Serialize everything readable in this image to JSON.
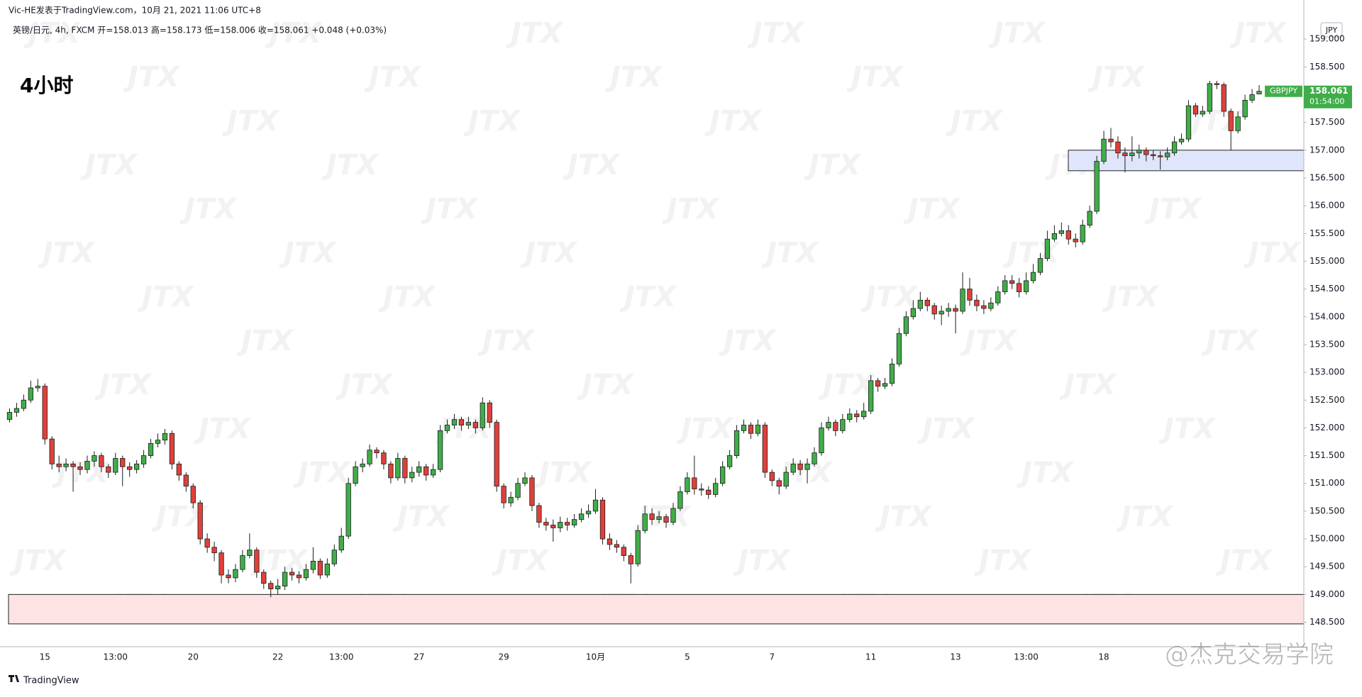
{
  "chart_data": {
    "type": "candlestick",
    "publisher": "Vic-HE发表于TradingView.com，10月 21, 2021 11:06 UTC+8",
    "legend_text": "英镑/日元, 4h, FXCM  开=158.013  高=158.173  低=158.006  收=158.061  +0.048 (+0.03%)",
    "title": "4小时",
    "currency": "JPY",
    "symbol": "GBPJPY",
    "last_price": 158.061,
    "countdown": "01:54:00",
    "brand": "TradingView",
    "watermark": "JTX",
    "overlay_text": "@杰克交易学院",
    "colors": {
      "up": "#3fae49",
      "down": "#e0403a",
      "last": "#3fae49"
    },
    "ylim": [
      148.06,
      159.36
    ],
    "yticks": [
      {
        "value": 148.5,
        "label": "148.500"
      },
      {
        "value": 149,
        "label": "149.000"
      },
      {
        "value": 149.5,
        "label": "149.500"
      },
      {
        "value": 150,
        "label": "150.000"
      },
      {
        "value": 150.5,
        "label": "150.500"
      },
      {
        "value": 151,
        "label": "151.000"
      },
      {
        "value": 151.5,
        "label": "151.500"
      },
      {
        "value": 152,
        "label": "152.000"
      },
      {
        "value": 152.5,
        "label": "152.500"
      },
      {
        "value": 153,
        "label": "153.000"
      },
      {
        "value": 153.5,
        "label": "153.500"
      },
      {
        "value": 154,
        "label": "154.000"
      },
      {
        "value": 154.5,
        "label": "154.500"
      },
      {
        "value": 155,
        "label": "155.000"
      },
      {
        "value": 155.5,
        "label": "155.500"
      },
      {
        "value": 156,
        "label": "156.000"
      },
      {
        "value": 156.5,
        "label": "156.500"
      },
      {
        "value": 157,
        "label": "157.000"
      },
      {
        "value": 157.5,
        "label": "157.500"
      },
      {
        "value": 158,
        "label": "158.000"
      },
      {
        "value": 158.5,
        "label": "158.500"
      },
      {
        "value": 159,
        "label": "159.000"
      }
    ],
    "zones": [
      {
        "from": 149.0,
        "to": 148.47,
        "color": "#fde3e3"
      },
      {
        "from": 157.0,
        "to": 156.63,
        "color": "#dfe6fb"
      }
    ],
    "categories": [
      null,
      null,
      null,
      null,
      null,
      "15",
      null,
      null,
      null,
      null,
      null,
      null,
      null,
      null,
      null,
      "13:00",
      null,
      null,
      null,
      null,
      null,
      null,
      null,
      null,
      null,
      null,
      "20",
      null,
      null,
      null,
      null,
      null,
      null,
      null,
      null,
      null,
      null,
      null,
      "22",
      null,
      null,
      null,
      null,
      null,
      null,
      null,
      null,
      "13:00",
      null,
      null,
      null,
      null,
      null,
      null,
      null,
      null,
      null,
      null,
      "27",
      null,
      null,
      null,
      null,
      null,
      null,
      null,
      null,
      null,
      null,
      null,
      "29",
      null,
      null,
      null,
      null,
      null,
      null,
      null,
      null,
      null,
      null,
      null,
      null,
      "10月",
      null,
      null,
      null,
      null,
      null,
      null,
      null,
      null,
      null,
      null,
      null,
      null,
      "5",
      null,
      null,
      null,
      null,
      null,
      null,
      null,
      null,
      null,
      null,
      null,
      "7",
      null,
      null,
      null,
      null,
      null,
      null,
      null,
      null,
      null,
      null,
      null,
      null,
      null,
      "11",
      null,
      null,
      null,
      null,
      null,
      null,
      null,
      null,
      null,
      null,
      null,
      "13",
      null,
      null,
      null,
      null,
      null,
      null,
      null,
      null,
      null,
      "13:00",
      null,
      null,
      null,
      null,
      null,
      null,
      null,
      null,
      null,
      null,
      "18",
      null,
      null,
      null,
      null,
      null,
      null,
      null,
      null,
      null,
      null,
      null,
      null,
      null,
      null,
      null,
      null,
      null,
      null,
      null,
      null,
      null,
      null
    ],
    "ohlc": [
      [
        152.15,
        152.35,
        152.1,
        152.28
      ],
      [
        152.28,
        152.45,
        152.2,
        152.35
      ],
      [
        152.35,
        152.6,
        152.3,
        152.5
      ],
      [
        152.5,
        152.85,
        152.45,
        152.72
      ],
      [
        152.72,
        152.88,
        152.65,
        152.75
      ],
      [
        152.75,
        152.8,
        151.7,
        151.8
      ],
      [
        151.8,
        151.85,
        151.25,
        151.35
      ],
      [
        151.35,
        151.5,
        151.2,
        151.3
      ],
      [
        151.3,
        151.45,
        151.22,
        151.35
      ],
      [
        151.35,
        151.4,
        150.85,
        151.3
      ],
      [
        151.3,
        151.38,
        151.15,
        151.25
      ],
      [
        151.25,
        151.5,
        151.18,
        151.4
      ],
      [
        151.4,
        151.58,
        151.3,
        151.5
      ],
      [
        151.5,
        151.55,
        151.2,
        151.3
      ],
      [
        151.3,
        151.35,
        151.1,
        151.2
      ],
      [
        151.2,
        151.55,
        151.15,
        151.45
      ],
      [
        151.45,
        151.5,
        150.95,
        151.3
      ],
      [
        151.3,
        151.38,
        151.12,
        151.25
      ],
      [
        151.25,
        151.42,
        151.18,
        151.35
      ],
      [
        151.35,
        151.6,
        151.28,
        151.5
      ],
      [
        151.5,
        151.8,
        151.45,
        151.72
      ],
      [
        151.72,
        151.9,
        151.65,
        151.78
      ],
      [
        151.78,
        151.98,
        151.7,
        151.9
      ],
      [
        151.9,
        151.95,
        151.25,
        151.35
      ],
      [
        151.35,
        151.4,
        151.05,
        151.15
      ],
      [
        151.15,
        151.2,
        150.85,
        150.95
      ],
      [
        150.95,
        151.0,
        150.55,
        150.65
      ],
      [
        150.65,
        150.7,
        149.9,
        150.0
      ],
      [
        150.0,
        150.1,
        149.75,
        149.85
      ],
      [
        149.85,
        149.95,
        149.6,
        149.75
      ],
      [
        149.75,
        149.8,
        149.2,
        149.35
      ],
      [
        149.35,
        149.45,
        149.2,
        149.3
      ],
      [
        149.3,
        149.55,
        149.22,
        149.45
      ],
      [
        149.45,
        149.8,
        149.4,
        149.7
      ],
      [
        149.7,
        150.1,
        149.65,
        149.8
      ],
      [
        149.8,
        149.85,
        149.3,
        149.4
      ],
      [
        149.4,
        149.45,
        149.1,
        149.2
      ],
      [
        149.2,
        149.25,
        148.95,
        149.1
      ],
      [
        149.1,
        149.28,
        149.0,
        149.15
      ],
      [
        149.15,
        149.5,
        149.08,
        149.4
      ],
      [
        149.4,
        149.48,
        149.25,
        149.35
      ],
      [
        149.35,
        149.42,
        149.2,
        149.3
      ],
      [
        149.3,
        149.55,
        149.25,
        149.45
      ],
      [
        149.45,
        149.85,
        149.38,
        149.6
      ],
      [
        149.6,
        149.65,
        149.28,
        149.35
      ],
      [
        149.35,
        149.65,
        149.3,
        149.55
      ],
      [
        149.55,
        149.9,
        149.5,
        149.8
      ],
      [
        149.8,
        150.2,
        149.75,
        150.05
      ],
      [
        150.05,
        151.1,
        150.0,
        151.0
      ],
      [
        151.0,
        151.4,
        150.95,
        151.3
      ],
      [
        151.3,
        151.45,
        151.2,
        151.35
      ],
      [
        151.35,
        151.7,
        151.3,
        151.6
      ],
      [
        151.6,
        151.65,
        151.45,
        151.55
      ],
      [
        151.55,
        151.6,
        151.25,
        151.35
      ],
      [
        151.35,
        151.4,
        151.0,
        151.1
      ],
      [
        151.1,
        151.55,
        151.05,
        151.45
      ],
      [
        151.45,
        151.5,
        151.0,
        151.1
      ],
      [
        151.1,
        151.3,
        151.02,
        151.2
      ],
      [
        151.2,
        151.4,
        151.12,
        151.3
      ],
      [
        151.3,
        151.35,
        151.05,
        151.15
      ],
      [
        151.15,
        151.35,
        151.1,
        151.25
      ],
      [
        151.25,
        152.05,
        151.2,
        151.95
      ],
      [
        151.95,
        152.15,
        151.9,
        152.05
      ],
      [
        152.05,
        152.25,
        151.98,
        152.15
      ],
      [
        152.15,
        152.2,
        151.95,
        152.05
      ],
      [
        152.05,
        152.2,
        151.98,
        152.1
      ],
      [
        152.1,
        152.15,
        151.9,
        152.0
      ],
      [
        152.0,
        152.55,
        151.95,
        152.45
      ],
      [
        152.45,
        152.5,
        152.0,
        152.1
      ],
      [
        152.1,
        152.15,
        150.85,
        150.95
      ],
      [
        150.95,
        151.0,
        150.55,
        150.65
      ],
      [
        150.65,
        150.85,
        150.58,
        150.75
      ],
      [
        150.75,
        151.1,
        150.7,
        151.0
      ],
      [
        151.0,
        151.2,
        150.95,
        151.1
      ],
      [
        151.1,
        151.15,
        150.5,
        150.6
      ],
      [
        150.6,
        150.65,
        150.2,
        150.3
      ],
      [
        150.3,
        150.38,
        150.15,
        150.25
      ],
      [
        150.25,
        150.35,
        149.95,
        150.2
      ],
      [
        150.2,
        150.4,
        150.12,
        150.3
      ],
      [
        150.3,
        150.38,
        150.15,
        150.25
      ],
      [
        150.25,
        150.45,
        150.2,
        150.35
      ],
      [
        150.35,
        150.55,
        150.3,
        150.45
      ],
      [
        150.45,
        150.62,
        150.38,
        150.5
      ],
      [
        150.5,
        150.9,
        150.45,
        150.7
      ],
      [
        150.7,
        150.75,
        149.9,
        150.0
      ],
      [
        150.0,
        150.1,
        149.8,
        149.9
      ],
      [
        149.9,
        149.98,
        149.75,
        149.85
      ],
      [
        149.85,
        149.9,
        149.6,
        149.7
      ],
      [
        149.7,
        149.75,
        149.2,
        149.55
      ],
      [
        149.55,
        150.25,
        149.5,
        150.15
      ],
      [
        150.15,
        150.6,
        150.1,
        150.45
      ],
      [
        150.45,
        150.55,
        150.25,
        150.35
      ],
      [
        150.35,
        150.5,
        150.28,
        150.4
      ],
      [
        150.4,
        150.45,
        150.2,
        150.3
      ],
      [
        150.3,
        150.65,
        150.25,
        150.55
      ],
      [
        150.55,
        150.95,
        150.5,
        150.85
      ],
      [
        150.85,
        151.2,
        150.8,
        151.1
      ],
      [
        151.1,
        151.5,
        150.8,
        150.9
      ],
      [
        150.9,
        151.0,
        150.78,
        150.88
      ],
      [
        150.88,
        150.95,
        150.72,
        150.8
      ],
      [
        150.8,
        151.1,
        150.75,
        151.0
      ],
      [
        151.0,
        151.4,
        150.95,
        151.3
      ],
      [
        151.3,
        151.6,
        151.25,
        151.5
      ],
      [
        151.5,
        152.05,
        151.45,
        151.95
      ],
      [
        151.95,
        152.15,
        151.9,
        152.05
      ],
      [
        152.05,
        152.1,
        151.8,
        151.9
      ],
      [
        151.9,
        152.15,
        151.85,
        152.05
      ],
      [
        152.05,
        152.1,
        151.1,
        151.2
      ],
      [
        151.2,
        151.25,
        150.95,
        151.05
      ],
      [
        151.05,
        151.1,
        150.8,
        150.95
      ],
      [
        150.95,
        151.3,
        150.9,
        151.2
      ],
      [
        151.2,
        151.45,
        151.15,
        151.35
      ],
      [
        151.35,
        151.42,
        151.15,
        151.25
      ],
      [
        151.25,
        151.45,
        151.0,
        151.35
      ],
      [
        151.35,
        151.65,
        151.3,
        151.55
      ],
      [
        151.55,
        152.1,
        151.5,
        152.0
      ],
      [
        152.0,
        152.2,
        151.95,
        152.1
      ],
      [
        152.1,
        152.15,
        151.85,
        151.95
      ],
      [
        151.95,
        152.25,
        151.9,
        152.15
      ],
      [
        152.15,
        152.35,
        152.1,
        152.25
      ],
      [
        152.25,
        152.32,
        152.1,
        152.2
      ],
      [
        152.2,
        152.45,
        152.15,
        152.3
      ],
      [
        152.3,
        152.95,
        152.25,
        152.85
      ],
      [
        152.85,
        152.9,
        152.65,
        152.75
      ],
      [
        152.75,
        152.9,
        152.7,
        152.8
      ],
      [
        152.8,
        153.25,
        152.75,
        153.15
      ],
      [
        153.15,
        153.8,
        153.1,
        153.7
      ],
      [
        153.7,
        154.1,
        153.65,
        154.0
      ],
      [
        154.0,
        154.3,
        153.95,
        154.15
      ],
      [
        154.15,
        154.45,
        154.1,
        154.3
      ],
      [
        154.3,
        154.35,
        154.1,
        154.2
      ],
      [
        154.2,
        154.25,
        153.95,
        154.05
      ],
      [
        154.05,
        154.2,
        153.85,
        154.1
      ],
      [
        154.1,
        154.25,
        154.0,
        154.15
      ],
      [
        154.15,
        154.22,
        153.7,
        154.1
      ],
      [
        154.1,
        154.8,
        154.05,
        154.5
      ],
      [
        154.5,
        154.7,
        154.2,
        154.3
      ],
      [
        154.3,
        154.4,
        154.1,
        154.2
      ],
      [
        154.2,
        154.3,
        154.05,
        154.15
      ],
      [
        154.15,
        154.35,
        154.1,
        154.25
      ],
      [
        154.25,
        154.55,
        154.2,
        154.45
      ],
      [
        154.45,
        154.75,
        154.4,
        154.65
      ],
      [
        154.65,
        154.75,
        154.5,
        154.6
      ],
      [
        154.6,
        154.7,
        154.35,
        154.45
      ],
      [
        154.45,
        154.8,
        154.4,
        154.65
      ],
      [
        154.65,
        154.95,
        154.6,
        154.8
      ],
      [
        154.8,
        155.15,
        154.75,
        155.05
      ],
      [
        155.05,
        155.55,
        155.0,
        155.4
      ],
      [
        155.4,
        155.65,
        155.35,
        155.5
      ],
      [
        155.5,
        155.7,
        155.45,
        155.55
      ],
      [
        155.55,
        155.65,
        155.3,
        155.4
      ],
      [
        155.4,
        155.5,
        155.25,
        155.35
      ],
      [
        155.35,
        155.75,
        155.3,
        155.65
      ],
      [
        155.65,
        156.0,
        155.6,
        155.9
      ],
      [
        155.9,
        156.9,
        155.85,
        156.8
      ],
      [
        156.8,
        157.35,
        156.75,
        157.2
      ],
      [
        157.2,
        157.4,
        157.05,
        157.15
      ],
      [
        157.15,
        157.25,
        156.85,
        156.95
      ],
      [
        156.95,
        157.05,
        156.6,
        156.9
      ],
      [
        156.9,
        157.25,
        156.8,
        156.95
      ],
      [
        156.95,
        157.1,
        156.85,
        157.0
      ],
      [
        157.0,
        157.05,
        156.8,
        156.92
      ],
      [
        156.92,
        157.0,
        156.82,
        156.9
      ],
      [
        156.9,
        156.98,
        156.65,
        156.88
      ],
      [
        156.88,
        157.05,
        156.82,
        156.95
      ],
      [
        156.95,
        157.25,
        156.9,
        157.15
      ],
      [
        157.15,
        157.3,
        157.1,
        157.2
      ],
      [
        157.2,
        157.9,
        157.15,
        157.8
      ],
      [
        157.8,
        157.85,
        157.6,
        157.65
      ],
      [
        157.65,
        157.8,
        157.6,
        157.7
      ],
      [
        157.7,
        158.25,
        157.65,
        158.2
      ],
      [
        158.2,
        158.25,
        158.1,
        158.18
      ],
      [
        158.18,
        158.22,
        157.6,
        157.7
      ],
      [
        157.7,
        157.75,
        157.0,
        157.35
      ],
      [
        157.35,
        157.7,
        157.3,
        157.6
      ],
      [
        157.6,
        158.0,
        157.55,
        157.9
      ],
      [
        157.9,
        158.1,
        157.85,
        158.0
      ],
      [
        158.013,
        158.173,
        158.006,
        158.061
      ]
    ]
  }
}
